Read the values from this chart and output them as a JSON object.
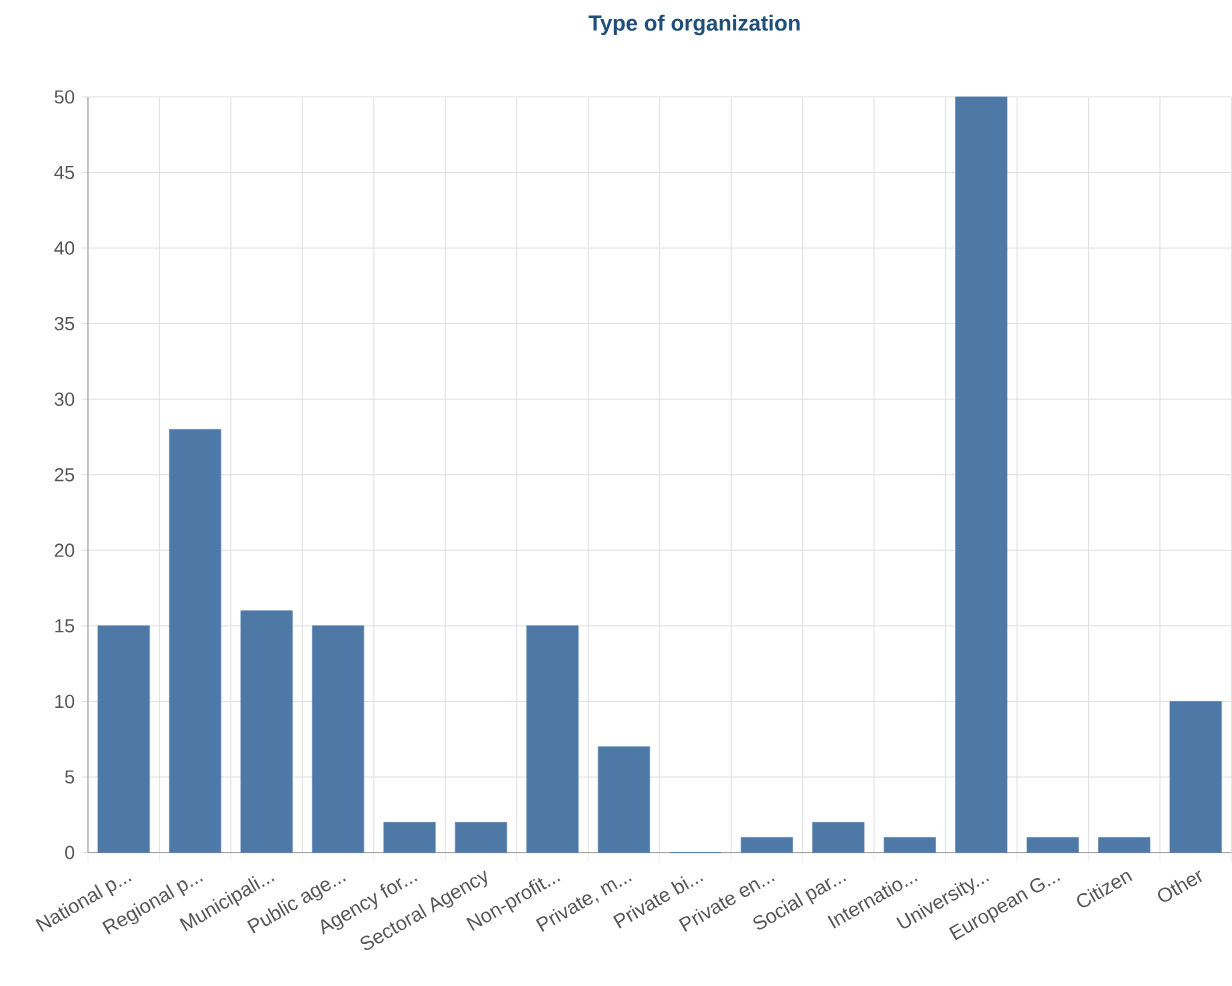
{
  "chart_data": {
    "type": "bar",
    "title": "Type of organization",
    "categories": [
      "National p...",
      "Regional p...",
      "Municipali...",
      "Public age...",
      "Agency for...",
      "Sectoral Agency",
      "Non-profit...",
      "Private, m...",
      "Private bi...",
      "Private en...",
      "Social par...",
      "Internatio...",
      "University...",
      "European G...",
      "Citizen",
      "Other"
    ],
    "values": [
      15,
      28,
      16,
      15,
      2,
      2,
      15,
      7,
      0,
      1,
      2,
      1,
      50,
      1,
      1,
      10
    ],
    "color": "#4e79a7",
    "ylim": [
      0,
      50
    ],
    "yticks": [
      0,
      5,
      10,
      15,
      20,
      25,
      30,
      35,
      40,
      45,
      50
    ],
    "grid": true
  }
}
